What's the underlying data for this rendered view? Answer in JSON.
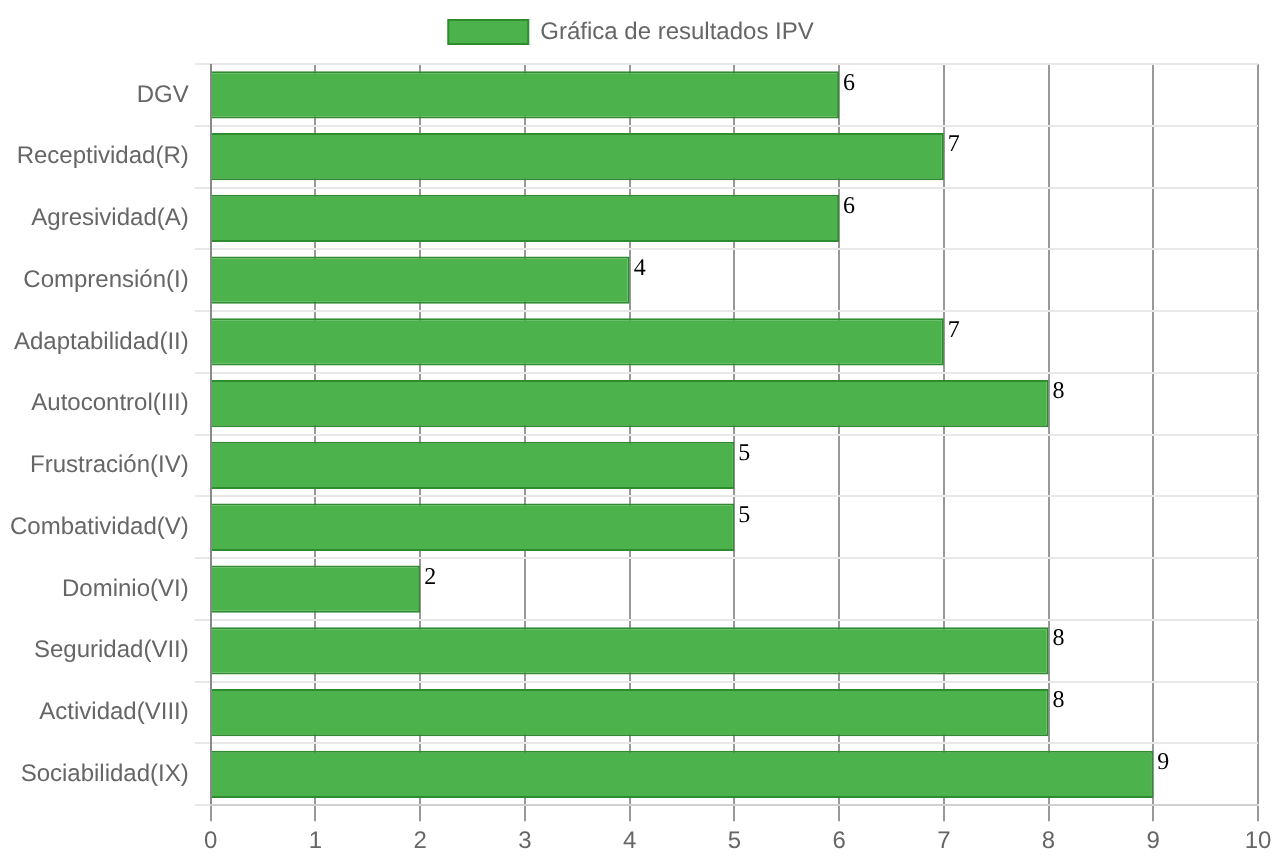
{
  "chart_data": {
    "type": "bar",
    "orientation": "horizontal",
    "categories": [
      "DGV",
      "Receptividad(R)",
      "Agresividad(A)",
      "Comprensión(I)",
      "Adaptabilidad(II)",
      "Autocontrol(III)",
      "Frustración(IV)",
      "Combatividad(V)",
      "Dominio(VI)",
      "Seguridad(VII)",
      "Actividad(VIII)",
      "Sociabilidad(IX)"
    ],
    "series": [
      {
        "name": "Gráfica de resultados IPV",
        "color": "#4cb34c",
        "values": [
          6,
          7,
          6,
          4,
          7,
          8,
          5,
          5,
          2,
          8,
          8,
          9
        ]
      }
    ],
    "xlim": [
      0,
      10
    ],
    "xticks": [
      0,
      1,
      2,
      3,
      4,
      5,
      6,
      7,
      8,
      9,
      10
    ],
    "grid": true,
    "legend": "top",
    "data_labels": true
  }
}
